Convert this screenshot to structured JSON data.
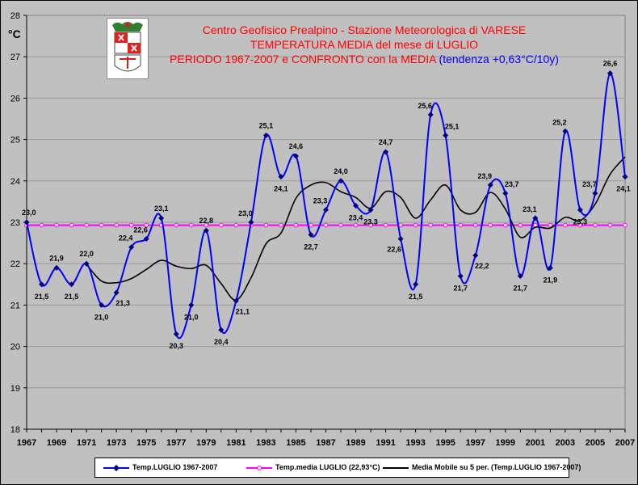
{
  "titles": {
    "line1": "Centro Geofisico Prealpino - Stazione Meteorologica di VARESE",
    "line2": "TEMPERATURA MEDIA del mese di LUGLIO",
    "line3": "PERIODO 1967-2007 e CONFRONTO con la MEDIA",
    "line3_trend": "(tendenza +0,63°C/10y)"
  },
  "chart_data": {
    "type": "line",
    "ylabel": "°C",
    "ylim": [
      18,
      28
    ],
    "yticks": [
      18,
      19,
      20,
      21,
      22,
      23,
      24,
      25,
      26,
      27,
      28
    ],
    "xlim": [
      1967,
      2007
    ],
    "xticks": [
      1967,
      1969,
      1971,
      1973,
      1975,
      1977,
      1979,
      1981,
      1983,
      1985,
      1987,
      1989,
      1991,
      1993,
      1995,
      1997,
      1999,
      2001,
      2003,
      2005,
      2007
    ],
    "x": [
      1967,
      1968,
      1969,
      1970,
      1971,
      1972,
      1973,
      1974,
      1975,
      1976,
      1977,
      1978,
      1979,
      1980,
      1981,
      1982,
      1983,
      1984,
      1985,
      1986,
      1987,
      1988,
      1989,
      1990,
      1991,
      1992,
      1993,
      1994,
      1995,
      1996,
      1997,
      1998,
      1999,
      2000,
      2001,
      2002,
      2003,
      2004,
      2005,
      2006,
      2007
    ],
    "series": [
      {
        "name": "Temp.LUGLIO 1967-2007",
        "color": "#0000ff",
        "values": [
          23.0,
          21.5,
          21.9,
          21.5,
          22.0,
          21.0,
          21.3,
          22.4,
          22.6,
          23.1,
          20.3,
          21.0,
          22.8,
          20.4,
          21.1,
          23.0,
          25.1,
          24.1,
          24.6,
          22.7,
          23.3,
          24.0,
          23.4,
          23.3,
          24.7,
          22.6,
          21.5,
          25.6,
          25.1,
          21.7,
          22.2,
          23.9,
          23.7,
          21.7,
          23.1,
          21.9,
          25.2,
          23.3,
          23.7,
          26.6,
          24.1
        ]
      },
      {
        "name": "Temp.media LUGLIO (22,93°C)",
        "color": "#ff00ff",
        "values": [
          22.93,
          22.93,
          22.93,
          22.93,
          22.93,
          22.93,
          22.93,
          22.93,
          22.93,
          22.93,
          22.93,
          22.93,
          22.93,
          22.93,
          22.93,
          22.93,
          22.93,
          22.93,
          22.93,
          22.93,
          22.93,
          22.93,
          22.93,
          22.93,
          22.93,
          22.93,
          22.93,
          22.93,
          22.93,
          22.93,
          22.93,
          22.93,
          22.93,
          22.93,
          22.93,
          22.93,
          22.93,
          22.93,
          22.93,
          22.93,
          22.93
        ]
      },
      {
        "name": "Media Mobile su 5 per. (Temp.LUGLIO 1967-2007)",
        "color": "#000000",
        "x": [
          1971,
          1972,
          1973,
          1974,
          1975,
          1976,
          1977,
          1978,
          1979,
          1980,
          1981,
          1982,
          1983,
          1984,
          1985,
          1986,
          1987,
          1988,
          1989,
          1990,
          1991,
          1992,
          1993,
          1994,
          1995,
          1996,
          1997,
          1998,
          1999,
          2000,
          2001,
          2002,
          2003,
          2004,
          2005,
          2006,
          2007
        ],
        "values": [
          21.98,
          21.58,
          21.54,
          21.64,
          21.86,
          22.08,
          21.94,
          21.88,
          21.96,
          21.52,
          21.12,
          21.66,
          22.48,
          22.74,
          23.58,
          23.9,
          23.96,
          23.74,
          23.6,
          23.34,
          23.74,
          23.6,
          23.1,
          23.54,
          23.9,
          23.3,
          23.24,
          23.72,
          23.32,
          22.64,
          22.88,
          22.86,
          23.12,
          23.04,
          23.44,
          24.16,
          24.58
        ]
      }
    ],
    "data_labels": [
      {
        "text": "23,0",
        "x": 1967,
        "y": 23.0,
        "pos": "above"
      },
      {
        "text": "21,5",
        "x": 1968,
        "y": 21.5,
        "pos": "below"
      },
      {
        "text": "21,9",
        "x": 1969,
        "y": 21.9,
        "pos": "above"
      },
      {
        "text": "21,5",
        "x": 1970,
        "y": 21.5,
        "pos": "below"
      },
      {
        "text": "22,0",
        "x": 1971,
        "y": 22.0,
        "pos": "above"
      },
      {
        "text": "21,0",
        "x": 1972,
        "y": 21.0,
        "pos": "below"
      },
      {
        "text": "21,3",
        "x": 1973,
        "y": 21.3,
        "pos": "below-right"
      },
      {
        "text": "22,4",
        "x": 1974,
        "y": 22.4,
        "pos": "above-left"
      },
      {
        "text": "22,6",
        "x": 1975,
        "y": 22.6,
        "pos": "above-left"
      },
      {
        "text": "23,1",
        "x": 1976,
        "y": 23.1,
        "pos": "above"
      },
      {
        "text": "20,3",
        "x": 1977,
        "y": 20.3,
        "pos": "below"
      },
      {
        "text": "21,0",
        "x": 1978,
        "y": 21.0,
        "pos": "below"
      },
      {
        "text": "22,8",
        "x": 1979,
        "y": 22.8,
        "pos": "above"
      },
      {
        "text": "20,4",
        "x": 1980,
        "y": 20.4,
        "pos": "below"
      },
      {
        "text": "21,1",
        "x": 1981,
        "y": 21.1,
        "pos": "below-right"
      },
      {
        "text": "23,0",
        "x": 1982,
        "y": 23.0,
        "pos": "above-left"
      },
      {
        "text": "25,1",
        "x": 1983,
        "y": 25.1,
        "pos": "above"
      },
      {
        "text": "24,1",
        "x": 1984,
        "y": 24.1,
        "pos": "below"
      },
      {
        "text": "24,6",
        "x": 1985,
        "y": 24.6,
        "pos": "above"
      },
      {
        "text": "22,7",
        "x": 1986,
        "y": 22.7,
        "pos": "below"
      },
      {
        "text": "23,3",
        "x": 1987,
        "y": 23.3,
        "pos": "above-left"
      },
      {
        "text": "24,0",
        "x": 1988,
        "y": 24.0,
        "pos": "above"
      },
      {
        "text": "23,4",
        "x": 1989,
        "y": 23.4,
        "pos": "below"
      },
      {
        "text": "23,3",
        "x": 1990,
        "y": 23.3,
        "pos": "below"
      },
      {
        "text": "24,7",
        "x": 1991,
        "y": 24.7,
        "pos": "above"
      },
      {
        "text": "22,6",
        "x": 1992,
        "y": 22.6,
        "pos": "below-left"
      },
      {
        "text": "21,5",
        "x": 1993,
        "y": 21.5,
        "pos": "below"
      },
      {
        "text": "25,6",
        "x": 1994,
        "y": 25.6,
        "pos": "above-left"
      },
      {
        "text": "25,1",
        "x": 1995,
        "y": 25.1,
        "pos": "above-right"
      },
      {
        "text": "21,7",
        "x": 1996,
        "y": 21.7,
        "pos": "below"
      },
      {
        "text": "22,2",
        "x": 1997,
        "y": 22.2,
        "pos": "below-right"
      },
      {
        "text": "23,9",
        "x": 1998,
        "y": 23.9,
        "pos": "above-left"
      },
      {
        "text": "23,7",
        "x": 1999,
        "y": 23.7,
        "pos": "above-right"
      },
      {
        "text": "21,7",
        "x": 2000,
        "y": 21.7,
        "pos": "below"
      },
      {
        "text": "23,1",
        "x": 2001,
        "y": 23.1,
        "pos": "above-left"
      },
      {
        "text": "21,9",
        "x": 2002,
        "y": 21.9,
        "pos": "below"
      },
      {
        "text": "25,2",
        "x": 2003,
        "y": 25.2,
        "pos": "above-left"
      },
      {
        "text": "23,3",
        "x": 2004,
        "y": 23.3,
        "pos": "below"
      },
      {
        "text": "23,7",
        "x": 2005,
        "y": 23.7,
        "pos": "above-left"
      },
      {
        "text": "26,6",
        "x": 2006,
        "y": 26.6,
        "pos": "above"
      },
      {
        "text": "24,1",
        "x": 2007,
        "y": 24.1,
        "pos": "below"
      }
    ],
    "grid": true,
    "legend": "bottom"
  }
}
